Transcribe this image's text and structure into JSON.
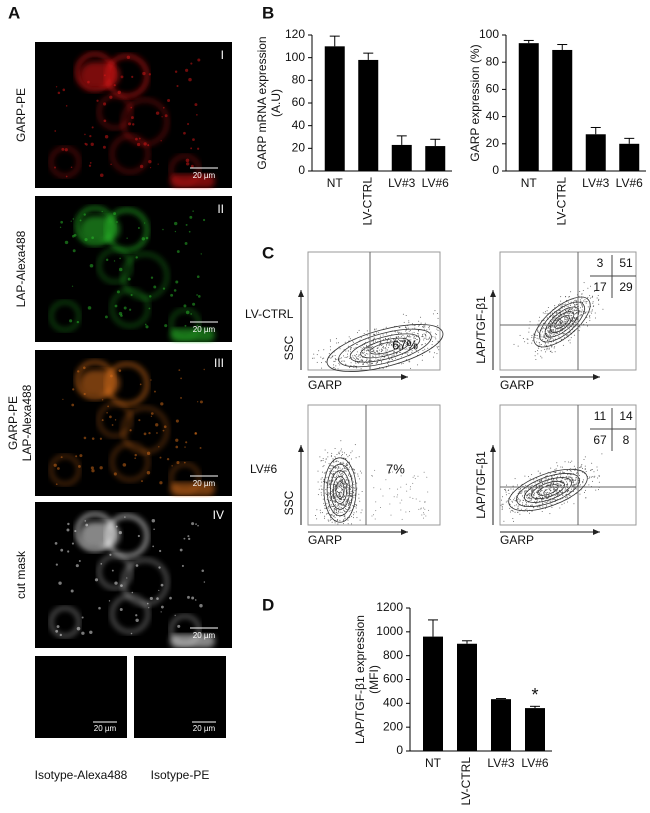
{
  "panel_letters": [
    "A",
    "B",
    "C",
    "D"
  ],
  "panel_a": {
    "images": [
      {
        "label": [
          "GARP-PE"
        ],
        "numeral": "I",
        "scale_bar": "20 µm"
      },
      {
        "label": [
          "LAP-Alexa488"
        ],
        "numeral": "II",
        "scale_bar": "20 µm"
      },
      {
        "label": [
          "GARP-PE",
          "LAP-Alexa488"
        ],
        "numeral": "III",
        "scale_bar": "20 µm"
      },
      {
        "label": [
          "cut mask"
        ],
        "numeral": "IV",
        "scale_bar": "20 µm"
      }
    ],
    "isotypes": [
      {
        "label": "Isotype-Alexa488",
        "scale_bar": "20 µm"
      },
      {
        "label": "Isotype-PE",
        "scale_bar": "20 µm"
      }
    ]
  },
  "panel_c": {
    "rows": [
      {
        "label": "LV-CTRL",
        "ssc_plot": {
          "y_label": "SSC",
          "x_label": "GARP",
          "percent": "67%"
        },
        "lap_plot": {
          "y_label": "LAP/TGF-β1",
          "x_label": "GARP",
          "quadrants": [
            3,
            51,
            17,
            29
          ]
        }
      },
      {
        "label": "LV#6",
        "ssc_plot": {
          "y_label": "SSC",
          "x_label": "GARP",
          "percent": "7%"
        },
        "lap_plot": {
          "y_label": "LAP/TGF-β1",
          "x_label": "GARP",
          "quadrants": [
            11,
            14,
            67,
            8
          ]
        }
      }
    ]
  },
  "chart_data": [
    {
      "type": "bar",
      "y_label": [
        "GARP mRNA expression",
        "(A.U)"
      ],
      "categories": [
        "NT",
        "LV-CTRL",
        "LV#3",
        "LV#6"
      ],
      "values": [
        110,
        98,
        23,
        22
      ],
      "errors": [
        9,
        6,
        8,
        6
      ],
      "color": "#000000",
      "ylim": [
        0,
        120
      ],
      "yticks": [
        0,
        20,
        40,
        60,
        80,
        100,
        120
      ]
    },
    {
      "type": "bar",
      "y_label": [
        "GARP expression  (%)"
      ],
      "categories": [
        "NT",
        "LV-CTRL",
        "LV#3",
        "LV#6"
      ],
      "values": [
        94,
        89,
        27,
        20
      ],
      "errors": [
        2,
        4,
        5,
        4
      ],
      "color": "#000000",
      "ylim": [
        0,
        100
      ],
      "yticks": [
        0,
        20,
        40,
        60,
        80,
        100
      ]
    },
    {
      "type": "bar",
      "y_label": [
        "LAP/TGF-β1 expression",
        "(MFI)"
      ],
      "categories": [
        "NT",
        "LV-CTRL",
        "LV#3",
        "LV#6"
      ],
      "values": [
        960,
        900,
        435,
        360
      ],
      "errors": [
        140,
        25,
        5,
        15
      ],
      "color": "#000000",
      "annotation": "*",
      "ylim": [
        0,
        1200
      ],
      "yticks": [
        0,
        200,
        400,
        600,
        800,
        1000,
        1200
      ]
    }
  ]
}
